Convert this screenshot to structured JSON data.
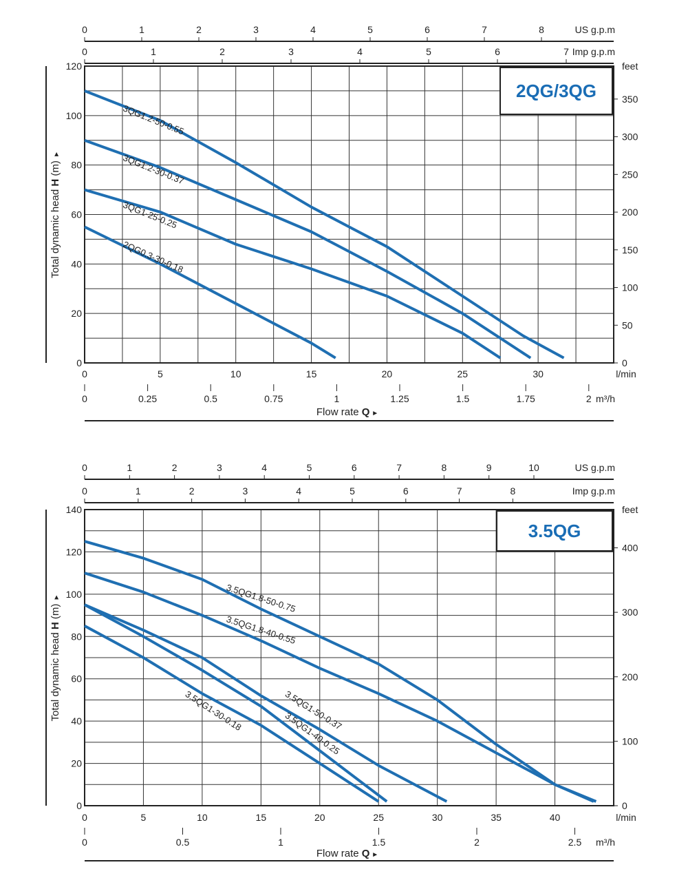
{
  "colors": {
    "curve": "#1f6fb2",
    "brand": "#1a6db5",
    "grid": "#333333"
  },
  "charts": [
    {
      "brand": "2QG/3QG",
      "y_label": "Total dynamic head",
      "y_label_bold": "H",
      "y_label_unit": "(m)",
      "x_title": "Flow rate",
      "x_title_bold": "Q",
      "x_title_arrow": "►",
      "y_up_arrow": "►",
      "units": {
        "lmin": "l/min",
        "m3h": "m³/h",
        "usgpm": "US g.p.m",
        "impgpm": "Imp g.p.m",
        "feet": "feet"
      }
    },
    {
      "brand": "3.5QG",
      "y_label": "Total dynamic head",
      "y_label_bold": "H",
      "y_label_unit": "(m)",
      "x_title": "Flow rate",
      "x_title_bold": "Q",
      "x_title_arrow": "►",
      "y_up_arrow": "►",
      "units": {
        "lmin": "l/min",
        "m3h": "m³/h",
        "usgpm": "US g.p.m",
        "impgpm": "Imp g.p.m",
        "feet": "feet"
      }
    }
  ],
  "chart_data": [
    {
      "type": "line",
      "title": "2QG/3QG",
      "xlabel": "Flow rate Q",
      "ylabel": "Total dynamic head H (m)",
      "x_unit": "l/min",
      "xlim": [
        0,
        35
      ],
      "ylim": [
        0,
        120
      ],
      "grid": true,
      "x_ticks_lmin": [
        0,
        5,
        10,
        15,
        20,
        25,
        30
      ],
      "x_ticks_m3h": [
        "0",
        "0.25",
        "0.5",
        "0.75",
        "1",
        "1.25",
        "1.5",
        "1.75",
        "2"
      ],
      "x_ticks_usgpm": [
        "0",
        "1",
        "2",
        "3",
        "4",
        "5",
        "6",
        "7",
        "8"
      ],
      "x_ticks_impgpm": [
        "0",
        "1",
        "2",
        "3",
        "4",
        "5",
        "6",
        "7"
      ],
      "y_ticks": [
        "0",
        "20",
        "40",
        "60",
        "80",
        "100",
        "120"
      ],
      "y2_ticks_feet": [
        "0",
        "50",
        "100",
        "150",
        "200",
        "250",
        "300",
        "350"
      ],
      "series": [
        {
          "name": "3QG1.2-50-0.55",
          "x": [
            0,
            5,
            10,
            15,
            20,
            25,
            29,
            31.7
          ],
          "y": [
            110,
            98,
            81,
            63,
            47,
            27,
            11,
            2
          ]
        },
        {
          "name": "3QG1.2-30-0.37",
          "x": [
            0,
            5,
            10,
            15,
            20,
            25,
            29.5
          ],
          "y": [
            90,
            79,
            66,
            53,
            37,
            20,
            2
          ]
        },
        {
          "name": "3QG1-25-0.25",
          "x": [
            0,
            5,
            10,
            15,
            20,
            25,
            27.5
          ],
          "y": [
            70,
            61,
            48,
            38,
            27,
            12,
            2
          ]
        },
        {
          "name": "2QG0.3-30-0.18",
          "x": [
            0,
            5,
            10,
            15,
            16.6
          ],
          "y": [
            55,
            40,
            24,
            8,
            2
          ]
        }
      ]
    },
    {
      "type": "line",
      "title": "3.5QG",
      "xlabel": "Flow rate Q",
      "ylabel": "Total dynamic head H (m)",
      "x_unit": "l/min",
      "xlim": [
        0,
        45
      ],
      "ylim": [
        0,
        140
      ],
      "grid": true,
      "x_ticks_lmin": [
        0,
        5,
        10,
        15,
        20,
        25,
        30,
        35,
        40
      ],
      "x_ticks_m3h": [
        "0",
        "0.5",
        "1",
        "1.5",
        "2",
        "2.5"
      ],
      "x_ticks_usgpm": [
        "0",
        "1",
        "2",
        "3",
        "4",
        "5",
        "6",
        "7",
        "8",
        "9",
        "10"
      ],
      "x_ticks_impgpm": [
        "0",
        "1",
        "2",
        "3",
        "4",
        "5",
        "6",
        "7",
        "8"
      ],
      "y_ticks": [
        "0",
        "20",
        "40",
        "60",
        "80",
        "100",
        "120",
        "140"
      ],
      "y2_ticks_feet": [
        "0",
        "100",
        "200",
        "300",
        "400"
      ],
      "series": [
        {
          "name": "3.5QG1.8-50-0.75",
          "x": [
            0,
            5,
            10,
            15,
            20,
            25,
            30,
            35,
            40,
            43.3
          ],
          "y": [
            125,
            117,
            107,
            93,
            80,
            67,
            50,
            29,
            10,
            2
          ]
        },
        {
          "name": "3.5QG1.8-40-0.55",
          "x": [
            0,
            5,
            10,
            15,
            20,
            25,
            30,
            35,
            40,
            43.5
          ],
          "y": [
            110,
            101,
            90,
            78,
            65,
            53,
            40,
            25,
            10,
            2
          ]
        },
        {
          "name": "3.5QG1-50-0.37",
          "x": [
            0,
            5,
            10,
            15,
            20,
            25,
            30.8
          ],
          "y": [
            95,
            83,
            70,
            52,
            36,
            19,
            2
          ]
        },
        {
          "name": "3.5QG1-40-0.25",
          "x": [
            0,
            5,
            10,
            15,
            20,
            25.7
          ],
          "y": [
            95,
            80,
            64,
            47,
            26,
            2
          ]
        },
        {
          "name": "3.5QG1-30-0.18",
          "x": [
            0,
            5,
            10,
            15,
            20,
            25
          ],
          "y": [
            85,
            70,
            53,
            38,
            20,
            2
          ]
        }
      ]
    }
  ]
}
